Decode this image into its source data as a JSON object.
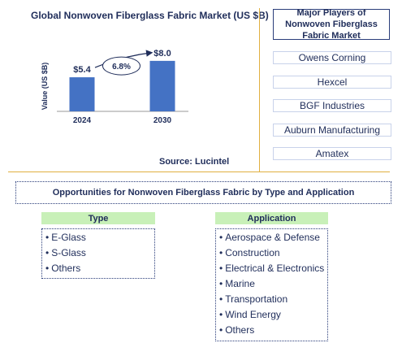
{
  "chart_data": {
    "type": "bar",
    "title": "Global Nonwoven Fiberglass Fabric Market (US $B)",
    "ylabel": "Value (US $B)",
    "categories": [
      "2024",
      "2030"
    ],
    "values": [
      5.4,
      8.0
    ],
    "value_labels": [
      "$5.4",
      "$8.0"
    ],
    "cagr_label": "6.8%",
    "bar_color": "#4472c4",
    "ylim": [
      0,
      8.5
    ],
    "grid": false
  },
  "source": "Source: Lucintel",
  "players": {
    "heading": "Major Players of Nonwoven Fiberglass Fabric Market",
    "items": [
      "Owens Corning",
      "Hexcel",
      "BGF Industries",
      "Auburn Manufacturing",
      "Amatex"
    ]
  },
  "opportunities": {
    "heading": "Opportunities for Nonwoven Fiberglass Fabric by Type and Application",
    "type": {
      "header": "Type",
      "items": [
        "E-Glass",
        "S-Glass",
        "Others"
      ]
    },
    "application": {
      "header": "Application",
      "items": [
        "Aerospace & Defense",
        "Construction",
        "Electrical & Electronics",
        "Marine",
        "Transportation",
        "Wind Energy",
        "Others"
      ]
    }
  },
  "colors": {
    "text": "#1f2d5a",
    "bar": "#4472c4",
    "divider": "#e0b040",
    "column_header": "#c8f0b8"
  }
}
